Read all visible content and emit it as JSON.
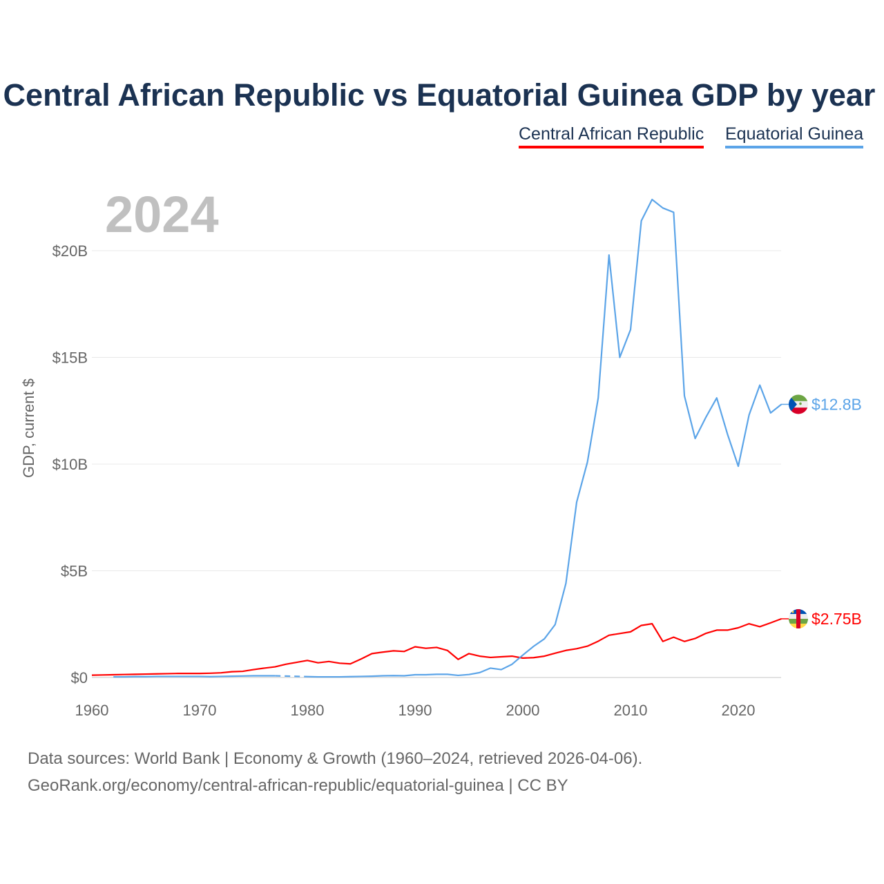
{
  "chart_data": {
    "type": "line",
    "title": "Central African Republic vs Equatorial Guinea GDP by year",
    "year_label": "2024",
    "ylabel": "GDP, current $",
    "xlabel": "",
    "xlim": [
      1960,
      2024
    ],
    "ylim": [
      0,
      22.5
    ],
    "x_ticks": [
      "1960",
      "1970",
      "1980",
      "1990",
      "2000",
      "2010",
      "2020"
    ],
    "y_ticks": [
      {
        "v": 0,
        "label": "$0"
      },
      {
        "v": 5,
        "label": "$5B"
      },
      {
        "v": 10,
        "label": "$10B"
      },
      {
        "v": 15,
        "label": "$15B"
      },
      {
        "v": 20,
        "label": "$20B"
      }
    ],
    "grid": true,
    "legend_position": "top-right",
    "start_year": 1960,
    "series": [
      {
        "name": "Central African Republic",
        "color": "#ff0000",
        "end_label": "$2.75B",
        "flag": "central-african-republic",
        "values": [
          0.11,
          0.12,
          0.13,
          0.14,
          0.15,
          0.16,
          0.17,
          0.18,
          0.19,
          0.19,
          0.19,
          0.2,
          0.22,
          0.27,
          0.29,
          0.37,
          0.44,
          0.5,
          0.62,
          0.71,
          0.8,
          0.69,
          0.75,
          0.67,
          0.64,
          0.87,
          1.12,
          1.19,
          1.25,
          1.22,
          1.44,
          1.37,
          1.41,
          1.27,
          0.85,
          1.12,
          1.0,
          0.94,
          0.97,
          1.0,
          0.91,
          0.93,
          1.0,
          1.14,
          1.27,
          1.35,
          1.47,
          1.7,
          1.98,
          2.06,
          2.14,
          2.44,
          2.52,
          1.69,
          1.89,
          1.69,
          1.83,
          2.07,
          2.22,
          2.22,
          2.33,
          2.52,
          2.38,
          2.56,
          2.75
        ]
      },
      {
        "name": "Equatorial Guinea",
        "color": "#5ba4e8",
        "end_label": "$12.8B",
        "flag": "equatorial-guinea",
        "values": [
          null,
          null,
          0.03,
          0.03,
          0.04,
          0.04,
          0.05,
          0.05,
          0.05,
          0.05,
          0.05,
          0.04,
          0.05,
          0.06,
          0.07,
          0.08,
          0.08,
          0.08,
          null,
          null,
          0.04,
          0.03,
          0.03,
          0.03,
          0.04,
          0.05,
          0.06,
          0.08,
          0.09,
          0.08,
          0.13,
          0.13,
          0.15,
          0.15,
          0.1,
          0.14,
          0.23,
          0.44,
          0.37,
          0.62,
          1.05,
          1.46,
          1.81,
          2.48,
          4.41,
          8.22,
          10.1,
          13.1,
          19.8,
          15.0,
          16.3,
          21.4,
          22.4,
          22.0,
          21.8,
          13.2,
          11.2,
          12.2,
          13.1,
          11.4,
          9.9,
          12.3,
          13.7,
          12.4,
          12.8
        ]
      }
    ]
  },
  "footer": {
    "line1": "Data sources: World Bank | Economy & Growth (1960–2024, retrieved 2026-04-06).",
    "line2": "GeoRank.org/economy/central-african-republic/equatorial-guinea | CC BY"
  }
}
